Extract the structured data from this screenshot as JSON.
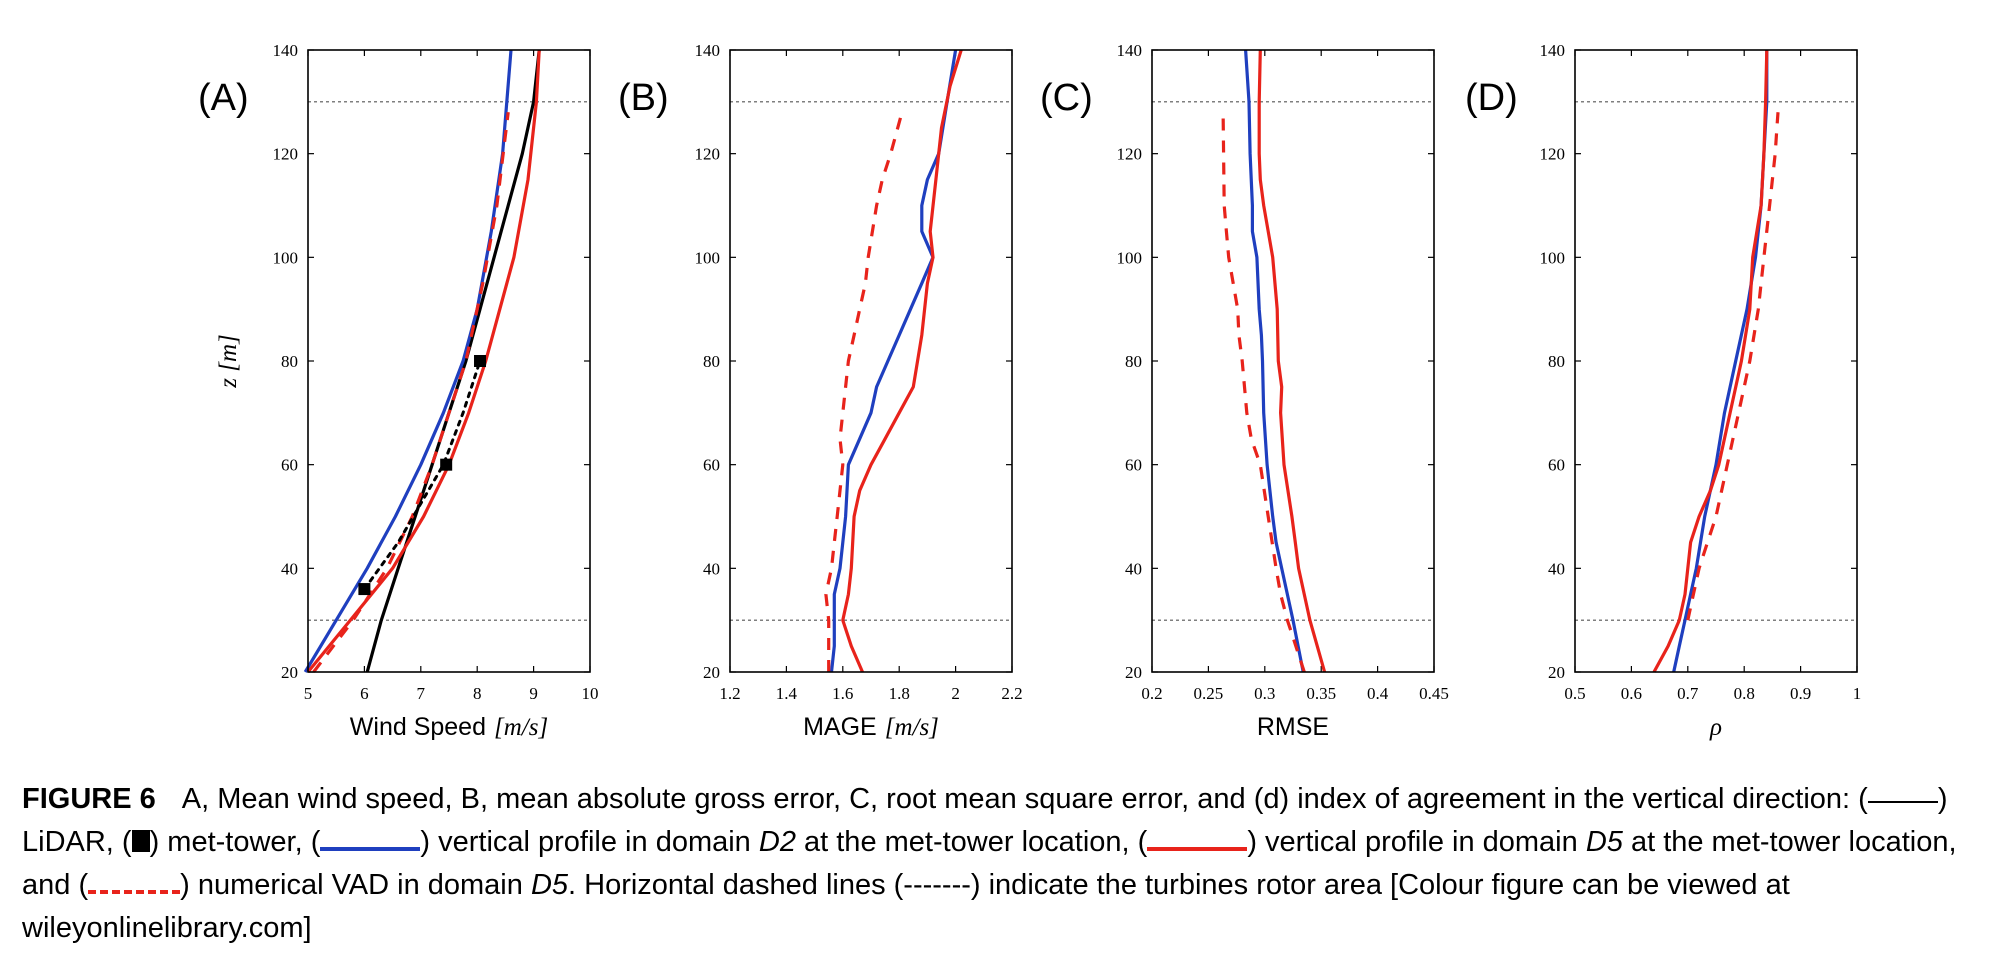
{
  "colors": {
    "lidar": "#000000",
    "d2": "#1f3fbf",
    "d5": "#e8231b",
    "vad": "#e8231b",
    "rotor": "#555555"
  },
  "chart_data": [
    {
      "type": "line",
      "panel_label": "(A)",
      "xlabel": "Wind Speed",
      "xunit": "[m/s]",
      "ylabel": "z [m]",
      "xlim": [
        5,
        10
      ],
      "ylim": [
        20,
        140
      ],
      "xticks": [
        "5",
        "6",
        "7",
        "8",
        "9",
        "10"
      ],
      "yticks": [
        "20",
        "40",
        "60",
        "80",
        "100",
        "120",
        "140"
      ],
      "rotor_area": [
        30,
        130
      ],
      "series": [
        {
          "key": "lidar",
          "style": "solid",
          "x": [
            6.05,
            6.3,
            6.6,
            6.9,
            7.2,
            7.5,
            7.8,
            8.05,
            8.3,
            8.55,
            8.8,
            9.0,
            9.1
          ],
          "y": [
            20,
            30,
            40,
            50,
            60,
            70,
            80,
            90,
            100,
            110,
            120,
            130,
            140
          ]
        },
        {
          "key": "d2",
          "style": "solid",
          "x": [
            4.95,
            5.5,
            6.05,
            6.55,
            7.0,
            7.4,
            7.75,
            8.0,
            8.25,
            8.45,
            8.6
          ],
          "y": [
            20,
            30,
            40,
            50,
            60,
            70,
            80,
            90,
            105,
            120,
            140
          ]
        },
        {
          "key": "d5",
          "style": "solid",
          "x": [
            5.0,
            5.75,
            6.5,
            7.05,
            7.5,
            7.85,
            8.15,
            8.4,
            8.65,
            8.9,
            9.05,
            9.1
          ],
          "y": [
            20,
            30,
            40,
            50,
            60,
            70,
            80,
            90,
            100,
            115,
            130,
            140
          ]
        },
        {
          "key": "vad",
          "style": "dashed",
          "x": [
            5.1,
            5.8,
            6.4,
            6.85,
            7.2,
            7.5,
            7.8,
            8.1,
            8.35,
            8.55
          ],
          "y": [
            20,
            30,
            40,
            50,
            60,
            70,
            80,
            95,
            110,
            128
          ]
        },
        {
          "key": "mettower_fit",
          "style": "dotted",
          "x": [
            6.0,
            6.6,
            7.4,
            7.75,
            8.05
          ],
          "y": [
            36,
            45,
            60,
            70,
            80
          ]
        }
      ],
      "points": {
        "key": "mettower",
        "x": [
          6.0,
          7.45,
          8.05
        ],
        "y": [
          36,
          60,
          80
        ]
      }
    },
    {
      "type": "line",
      "panel_label": "(B)",
      "xlabel": "MAGE",
      "xunit": "[m/s]",
      "xlim": [
        1.2,
        2.2
      ],
      "ylim": [
        20,
        140
      ],
      "xticks": [
        "1.2",
        "1.4",
        "1.6",
        "1.8",
        "2",
        "2.2"
      ],
      "yticks": [
        "20",
        "40",
        "60",
        "80",
        "100",
        "120",
        "140"
      ],
      "rotor_area": [
        30,
        130
      ],
      "series": [
        {
          "key": "d2",
          "style": "solid",
          "x": [
            1.56,
            1.57,
            1.57,
            1.59,
            1.6,
            1.61,
            1.62,
            1.66,
            1.7,
            1.72,
            1.76,
            1.8,
            1.84,
            1.88,
            1.92,
            1.88,
            1.88,
            1.9,
            1.94,
            1.97,
            2.0
          ],
          "y": [
            20,
            25,
            35,
            40,
            45,
            50,
            60,
            65,
            70,
            75,
            80,
            85,
            90,
            95,
            100,
            105,
            110,
            115,
            120,
            130,
            140
          ]
        },
        {
          "key": "d5",
          "style": "solid",
          "x": [
            1.67,
            1.63,
            1.6,
            1.62,
            1.63,
            1.64,
            1.66,
            1.7,
            1.75,
            1.8,
            1.85,
            1.88,
            1.9,
            1.92,
            1.91,
            1.93,
            1.95,
            1.98,
            2.02
          ],
          "y": [
            20,
            25,
            30,
            35,
            40,
            50,
            55,
            60,
            65,
            70,
            75,
            85,
            95,
            100,
            105,
            115,
            125,
            133,
            140
          ]
        },
        {
          "key": "vad",
          "style": "dashed",
          "x": [
            1.55,
            1.55,
            1.54,
            1.56,
            1.57,
            1.58,
            1.6,
            1.59,
            1.6,
            1.61,
            1.62,
            1.64,
            1.66,
            1.68,
            1.69,
            1.72,
            1.74,
            1.77,
            1.81
          ],
          "y": [
            20,
            30,
            35,
            40,
            45,
            50,
            60,
            65,
            70,
            75,
            80,
            85,
            90,
            95,
            100,
            110,
            115,
            120,
            128
          ]
        }
      ]
    },
    {
      "type": "line",
      "panel_label": "(C)",
      "xlabel": "RMSE",
      "xunit": "",
      "xlim": [
        0.2,
        0.45
      ],
      "ylim": [
        20,
        140
      ],
      "xticks": [
        "0.2",
        "0.25",
        "0.3",
        "0.35",
        "0.4",
        "0.45"
      ],
      "yticks": [
        "20",
        "40",
        "60",
        "80",
        "100",
        "120",
        "140"
      ],
      "rotor_area": [
        30,
        130
      ],
      "series": [
        {
          "key": "d2",
          "style": "solid",
          "x": [
            0.334,
            0.325,
            0.315,
            0.31,
            0.307,
            0.302,
            0.299,
            0.298,
            0.297,
            0.295,
            0.293,
            0.289,
            0.289,
            0.287,
            0.286,
            0.283
          ],
          "y": [
            20,
            30,
            40,
            45,
            50,
            60,
            70,
            80,
            85,
            90,
            100,
            105,
            110,
            120,
            130,
            140
          ]
        },
        {
          "key": "d5",
          "style": "solid",
          "x": [
            0.353,
            0.34,
            0.33,
            0.327,
            0.324,
            0.317,
            0.314,
            0.315,
            0.312,
            0.311,
            0.307,
            0.303,
            0.299,
            0.296,
            0.295,
            0.295,
            0.296
          ],
          "y": [
            20,
            30,
            40,
            45,
            50,
            60,
            70,
            75,
            80,
            90,
            100,
            105,
            110,
            115,
            120,
            130,
            140
          ]
        },
        {
          "key": "vad",
          "style": "dashed",
          "x": [
            0.335,
            0.32,
            0.314,
            0.31,
            0.303,
            0.296,
            0.288,
            0.284,
            0.28,
            0.277,
            0.276,
            0.272,
            0.268,
            0.266,
            0.264,
            0.263
          ],
          "y": [
            20,
            30,
            35,
            40,
            50,
            60,
            65,
            70,
            80,
            85,
            90,
            95,
            100,
            105,
            110,
            128
          ]
        }
      ]
    },
    {
      "type": "line",
      "panel_label": "(D)",
      "xlabel": "ρ",
      "xunit": "",
      "xlim": [
        0.5,
        1.0
      ],
      "ylim": [
        20,
        140
      ],
      "xticks": [
        "0.5",
        "0.6",
        "0.7",
        "0.8",
        "0.9",
        "1"
      ],
      "yticks": [
        "20",
        "40",
        "60",
        "80",
        "100",
        "120",
        "140"
      ],
      "rotor_area": [
        30,
        130
      ],
      "series": [
        {
          "key": "d2",
          "style": "solid",
          "x": [
            0.675,
            0.685,
            0.695,
            0.705,
            0.715,
            0.73,
            0.75,
            0.765,
            0.785,
            0.805,
            0.82,
            0.83,
            0.835,
            0.84,
            0.84
          ],
          "y": [
            20,
            25,
            30,
            35,
            40,
            50,
            60,
            70,
            80,
            90,
            100,
            110,
            120,
            130,
            140
          ]
        },
        {
          "key": "d5",
          "style": "solid",
          "x": [
            0.64,
            0.665,
            0.685,
            0.695,
            0.705,
            0.72,
            0.74,
            0.755,
            0.775,
            0.795,
            0.81,
            0.815,
            0.83,
            0.835,
            0.838,
            0.84
          ],
          "y": [
            20,
            25,
            30,
            35,
            45,
            50,
            55,
            60,
            70,
            80,
            90,
            100,
            110,
            120,
            130,
            140
          ]
        },
        {
          "key": "vad",
          "style": "dashed",
          "x": [
            0.7,
            0.71,
            0.72,
            0.735,
            0.75,
            0.77,
            0.79,
            0.81,
            0.825,
            0.835,
            0.845,
            0.85,
            0.855,
            0.858,
            0.86
          ],
          "y": [
            30,
            35,
            40,
            45,
            50,
            60,
            70,
            80,
            90,
            100,
            110,
            115,
            120,
            125,
            128
          ]
        }
      ]
    }
  ],
  "caption": {
    "figure_label": "FIGURE 6",
    "text_1": "A, Mean wind speed, B, mean absolute gross error, C, root mean square error, and (d) index of agreement in the vertical direction: (",
    "text_2": ") LiDAR, (",
    "text_3": ") met-tower, (",
    "text_4": ") vertical profile in domain ",
    "domain_d2": "D2",
    "text_5": " at the met-tower location, (",
    "text_6": ") vertical profile in domain ",
    "domain_d5": "D5",
    "text_7": " at the met-tower location, and (",
    "text_8": ") numerical VAD in domain ",
    "domain_d5b": "D5",
    "text_9": ". Horizontal dashed lines (-------) indicate the turbines rotor area [Colour figure can be viewed at wileyonlinelibrary.com]"
  }
}
